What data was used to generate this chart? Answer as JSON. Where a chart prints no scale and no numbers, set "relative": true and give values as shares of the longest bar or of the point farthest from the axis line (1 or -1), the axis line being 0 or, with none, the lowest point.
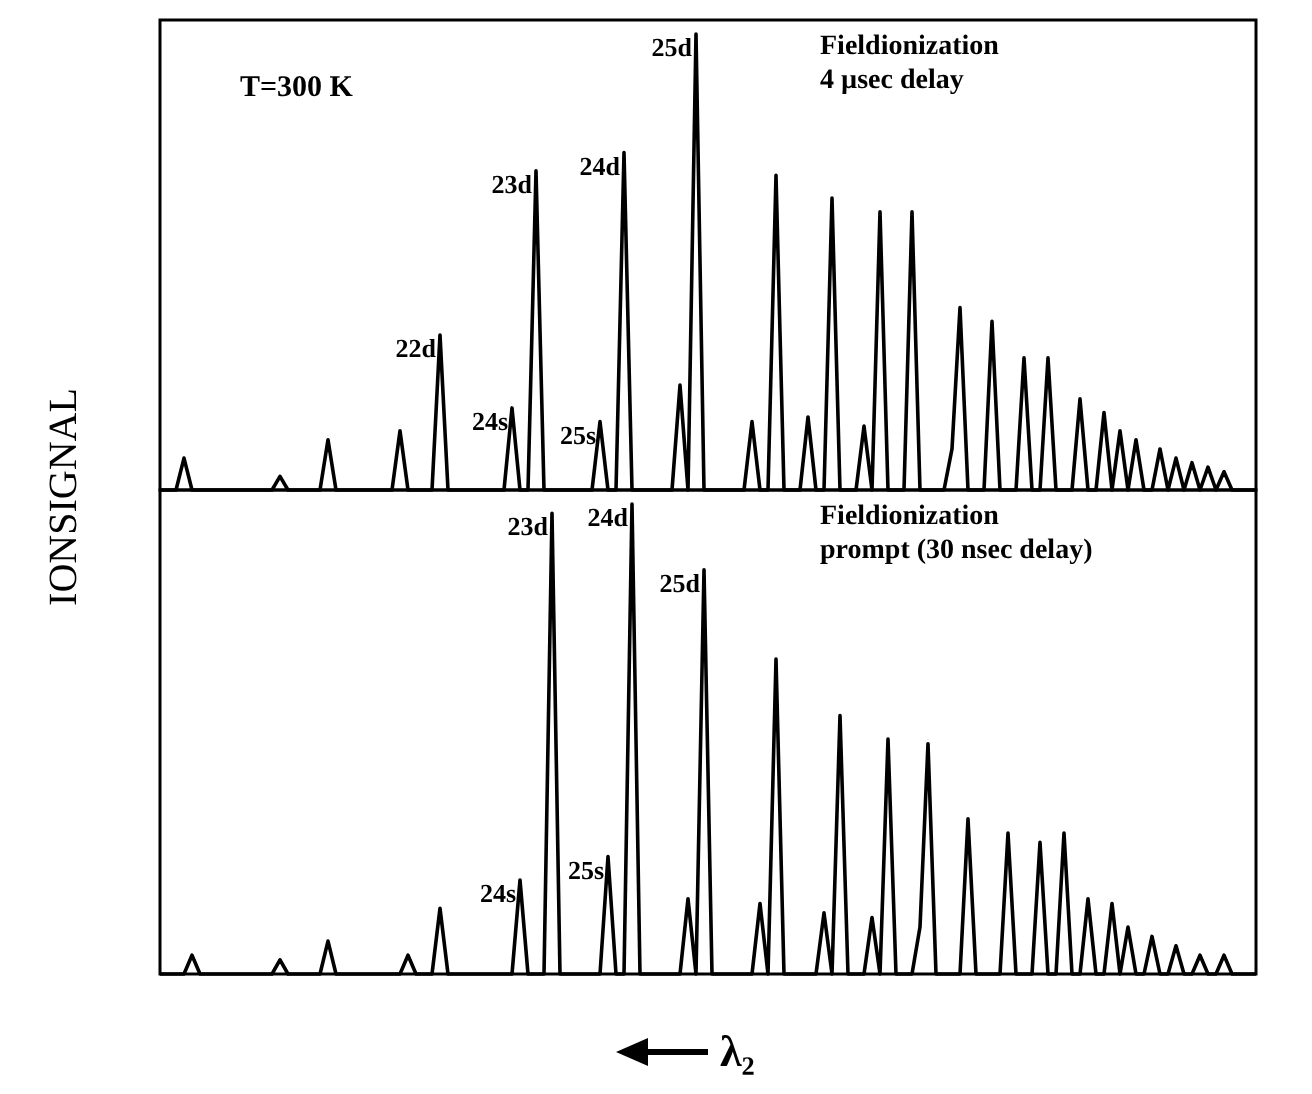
{
  "chart_data": [
    {
      "type": "line",
      "relative": true,
      "ylabel": "IONSIGNAL",
      "marker": "none",
      "line_style": "solid",
      "annotations": [
        "T=300 K",
        "Fieldionization",
        "4 µsec delay",
        "22d",
        "24s",
        "23d",
        "25s",
        "24d",
        "25d"
      ],
      "categories": [
        null,
        null,
        null,
        null,
        null,
        null,
        null,
        null,
        null,
        null,
        null,
        null,
        null,
        null,
        null,
        null,
        null,
        null,
        null,
        null,
        null,
        null,
        null,
        null,
        null,
        null,
        null,
        null,
        null,
        null,
        null,
        null,
        null,
        null,
        null,
        null,
        null,
        null,
        null,
        null,
        null,
        null,
        null,
        null,
        null,
        null,
        null,
        null,
        null,
        null,
        null,
        null,
        null,
        null,
        null,
        null,
        null,
        null,
        null,
        null,
        null,
        null,
        null,
        null,
        null,
        null,
        null,
        null,
        null,
        null,
        null,
        null,
        null,
        null,
        null,
        null,
        null,
        null,
        null,
        null,
        null,
        null,
        null,
        null,
        null,
        null,
        null,
        null,
        null,
        null,
        null,
        null,
        null,
        null,
        null,
        null,
        null,
        null,
        null,
        null,
        null,
        null,
        null,
        null,
        null,
        null,
        null,
        null,
        null,
        null,
        null,
        null,
        null,
        null,
        null,
        null,
        null,
        null,
        null,
        null,
        null,
        null,
        null,
        null,
        null,
        null,
        null,
        null,
        null,
        null,
        null,
        null,
        null,
        null,
        null,
        null,
        null,
        null
      ],
      "series": [
        {
          "color": "#000000",
          "values": [
            0,
            0,
            0,
            0.07,
            0,
            0,
            0,
            0,
            0,
            0,
            0,
            0,
            0,
            0,
            0,
            0.03,
            0,
            0,
            0,
            0,
            0,
            0.11,
            0,
            0,
            0,
            0,
            0,
            0,
            0,
            0,
            0.13,
            0,
            0,
            0,
            0,
            0.34,
            0,
            0,
            0,
            0,
            0,
            0,
            0,
            0,
            0.18,
            0,
            0,
            0.7,
            0,
            0,
            0,
            0,
            0,
            0,
            0,
            0.15,
            0,
            0,
            0.74,
            0,
            0,
            0,
            0,
            0,
            0,
            0.23,
            0,
            1,
            0,
            0,
            0,
            0,
            0,
            0,
            0.15,
            0,
            0,
            0.69,
            0,
            0,
            0,
            0.16,
            0,
            0,
            0.64,
            0,
            0,
            0,
            0.14,
            0,
            0.61,
            0,
            0,
            0,
            0.61,
            0,
            0,
            0,
            0,
            0.09,
            0.4,
            0,
            0,
            0,
            0.37,
            0,
            0,
            0,
            0.29,
            0,
            0,
            0.29,
            0,
            0,
            0,
            0.2,
            0,
            0,
            0.17,
            0,
            0.13,
            0,
            0.11,
            0,
            0,
            0.09,
            0,
            0.07,
            0,
            0.06,
            0,
            0.05,
            0,
            0.04,
            0,
            0,
            0,
            0
          ]
        }
      ]
    },
    {
      "type": "line",
      "relative": true,
      "xlabel": "λ₂",
      "marker": "none",
      "line_style": "solid",
      "annotations": [
        "Fieldionization",
        "prompt (30 nsec delay)",
        "24s",
        "23d",
        "25s",
        "24d",
        "25d"
      ],
      "categories": [
        null,
        null,
        null,
        null,
        null,
        null,
        null,
        null,
        null,
        null,
        null,
        null,
        null,
        null,
        null,
        null,
        null,
        null,
        null,
        null,
        null,
        null,
        null,
        null,
        null,
        null,
        null,
        null,
        null,
        null,
        null,
        null,
        null,
        null,
        null,
        null,
        null,
        null,
        null,
        null,
        null,
        null,
        null,
        null,
        null,
        null,
        null,
        null,
        null,
        null,
        null,
        null,
        null,
        null,
        null,
        null,
        null,
        null,
        null,
        null,
        null,
        null,
        null,
        null,
        null,
        null,
        null,
        null,
        null,
        null,
        null,
        null,
        null,
        null,
        null,
        null,
        null,
        null,
        null,
        null,
        null,
        null,
        null,
        null,
        null,
        null,
        null,
        null,
        null,
        null,
        null,
        null,
        null,
        null,
        null,
        null,
        null,
        null,
        null,
        null,
        null,
        null,
        null,
        null,
        null,
        null,
        null,
        null,
        null,
        null,
        null,
        null,
        null,
        null,
        null,
        null,
        null,
        null,
        null,
        null,
        null,
        null,
        null,
        null,
        null,
        null,
        null,
        null,
        null,
        null,
        null,
        null,
        null,
        null,
        null,
        null,
        null,
        null
      ],
      "series": [
        {
          "color": "#000000",
          "values": [
            0,
            0,
            0,
            0,
            0.04,
            0,
            0,
            0,
            0,
            0,
            0,
            0,
            0,
            0,
            0,
            0.03,
            0,
            0,
            0,
            0,
            0,
            0.07,
            0,
            0,
            0,
            0,
            0,
            0,
            0,
            0,
            0,
            0.04,
            0,
            0,
            0,
            0.14,
            0,
            0,
            0,
            0,
            0,
            0,
            0,
            0,
            0,
            0.2,
            0,
            0,
            0,
            0.98,
            0,
            0,
            0,
            0,
            0,
            0,
            0.25,
            0,
            0,
            1,
            0,
            0,
            0,
            0,
            0,
            0,
            0.16,
            0,
            0.86,
            0,
            0,
            0,
            0,
            0,
            0,
            0.15,
            0,
            0.67,
            0,
            0,
            0,
            0,
            0,
            0.13,
            0,
            0.55,
            0,
            0,
            0,
            0.12,
            0,
            0.5,
            0,
            0,
            0,
            0.1,
            0.49,
            0,
            0,
            0,
            0,
            0.33,
            0,
            0,
            0,
            0,
            0.3,
            0,
            0,
            0,
            0.28,
            0,
            0,
            0.3,
            0,
            0,
            0.16,
            0,
            0,
            0.15,
            0,
            0.1,
            0,
            0,
            0.08,
            0,
            0,
            0.06,
            0,
            0,
            0.04,
            0,
            0,
            0.04,
            0,
            0,
            0,
            0
          ]
        }
      ]
    }
  ]
}
